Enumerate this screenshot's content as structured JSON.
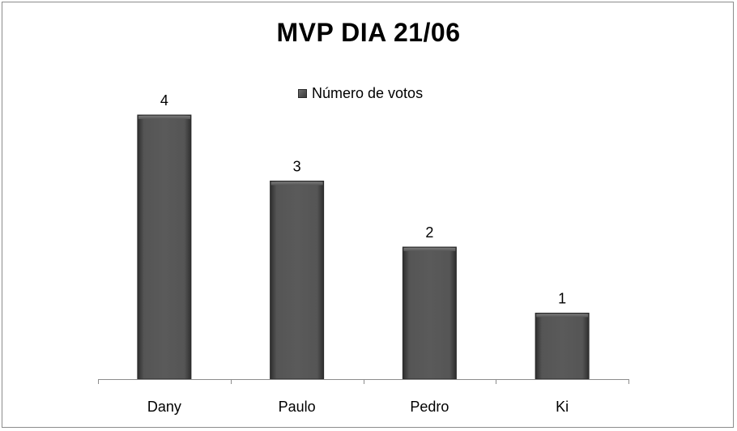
{
  "chart_data": {
    "type": "bar",
    "title": "MVP DIA 21/06",
    "categories": [
      "Dany",
      "Paulo",
      "Pedro",
      "Ki"
    ],
    "series": [
      {
        "name": "Número de votos",
        "values": [
          4,
          3,
          2,
          1
        ]
      }
    ],
    "ylim": [
      0,
      4
    ],
    "data_labels": [
      "4",
      "3",
      "2",
      "1"
    ],
    "legend_position": "top",
    "grid": false,
    "bar_color": "#4a4a4a"
  }
}
